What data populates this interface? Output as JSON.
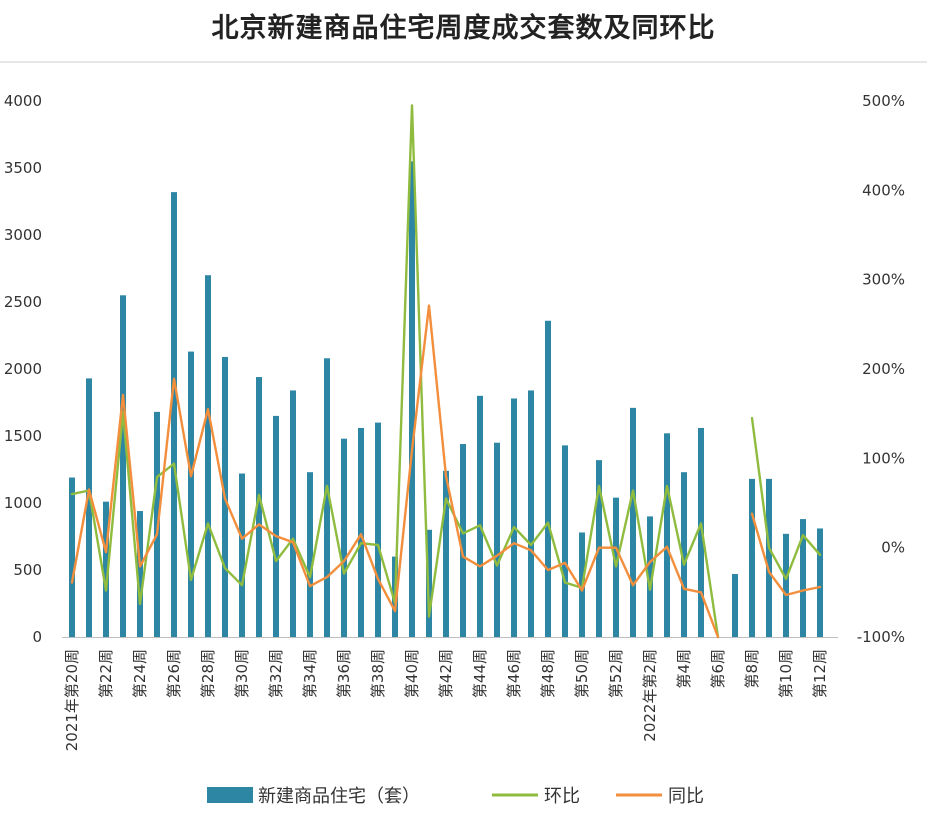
{
  "chart_data": {
    "type": "bar+line",
    "title": "北京新建商品住宅周度成交套数及同环比",
    "x_tick_labels": [
      "2021年第20周",
      "第22周",
      "第24周",
      "第26周",
      "第28周",
      "第30周",
      "第32周",
      "第34周",
      "第36周",
      "第38周",
      "第40周",
      "第42周",
      "第44周",
      "第46周",
      "第48周",
      "第50周",
      "第52周",
      "2022年第2周",
      "第4周",
      "第6周",
      "第8周",
      "第10周",
      "第12周"
    ],
    "y_left": {
      "ticks": [
        "0",
        "500",
        "1000",
        "1500",
        "2000",
        "2500",
        "3000",
        "3500",
        "4000"
      ],
      "lim": [
        0,
        4000
      ]
    },
    "y_right": {
      "ticks": [
        "-100%",
        "0%",
        "100%",
        "200%",
        "300%",
        "400%",
        "500%"
      ],
      "lim": [
        -1,
        5
      ]
    },
    "series": [
      {
        "name": "新建商品住宅（套）",
        "kind": "bar",
        "axis": "left",
        "color": "#2e86a5",
        "values": [
          1190,
          1930,
          1010,
          2550,
          940,
          1680,
          3320,
          2130,
          2700,
          2090,
          1220,
          1940,
          1650,
          1840,
          1230,
          2080,
          1480,
          1560,
          1600,
          600,
          3550,
          800,
          1240,
          1440,
          1800,
          1450,
          1780,
          1840,
          2360,
          1430,
          780,
          1320,
          1040,
          1710,
          900,
          1520,
          1230,
          1560,
          0,
          470,
          1180,
          1180,
          770,
          880,
          810
        ]
      },
      {
        "name": "环比",
        "kind": "line",
        "axis": "right",
        "color": "#8fbc3f",
        "values": [
          0.6,
          0.64,
          -0.48,
          1.52,
          -0.63,
          0.79,
          0.94,
          -0.36,
          0.27,
          -0.23,
          -0.42,
          0.59,
          -0.15,
          0.1,
          -0.33,
          0.69,
          -0.29,
          0.05,
          0.03,
          -0.62,
          4.95,
          -0.77,
          0.55,
          0.16,
          0.25,
          -0.2,
          0.23,
          0.03,
          0.28,
          -0.39,
          -0.45,
          0.69,
          -0.21,
          0.64,
          -0.47,
          0.69,
          -0.19,
          0.27,
          -1.0,
          null,
          1.45,
          0.0,
          -0.35,
          0.14,
          -0.08
        ]
      },
      {
        "name": "同比",
        "kind": "line",
        "axis": "right",
        "color": "#f28e3c",
        "values": [
          -0.39,
          0.65,
          -0.05,
          1.71,
          -0.21,
          0.15,
          1.89,
          0.8,
          1.55,
          0.55,
          0.1,
          0.26,
          0.13,
          0.06,
          -0.43,
          -0.33,
          -0.15,
          0.15,
          -0.35,
          -0.71,
          1.09,
          2.71,
          0.8,
          -0.1,
          -0.21,
          -0.09,
          0.05,
          -0.03,
          -0.25,
          -0.17,
          -0.48,
          0.0,
          0.0,
          -0.42,
          -0.16,
          0.01,
          -0.46,
          -0.5,
          -1.0,
          null,
          0.38,
          -0.27,
          -0.53,
          -0.48,
          -0.44
        ]
      }
    ],
    "grid": false,
    "legend_position": "bottom"
  }
}
